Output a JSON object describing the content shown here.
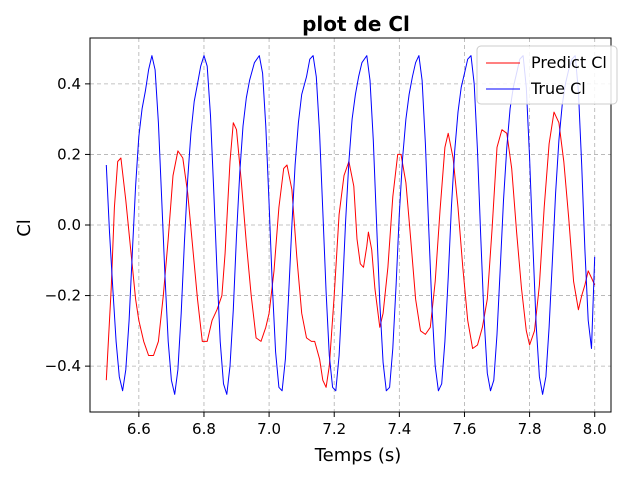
{
  "chart_data": {
    "type": "line",
    "title": "plot de Cl",
    "xlabel": "Temps (s)",
    "ylabel": "Cl",
    "xlim": [
      6.45,
      8.05
    ],
    "ylim": [
      -0.53,
      0.53
    ],
    "xticks": [
      6.6,
      6.8,
      7.0,
      7.2,
      7.4,
      7.6,
      7.8,
      8.0
    ],
    "xtick_labels": [
      "6.6",
      "6.8",
      "7.0",
      "7.2",
      "7.4",
      "7.6",
      "7.8",
      "8.0"
    ],
    "yticks": [
      -0.4,
      -0.2,
      0.0,
      0.2,
      0.4
    ],
    "ytick_labels": [
      "−0.4",
      "−0.2",
      "0.0",
      "0.2",
      "0.4"
    ],
    "grid": true,
    "legend_position": "top-right",
    "series": [
      {
        "name": "Predict Cl",
        "color": "#ff0000",
        "points": [
          [
            6.5,
            -0.44
          ],
          [
            6.515,
            -0.18
          ],
          [
            6.525,
            0.05
          ],
          [
            6.535,
            0.18
          ],
          [
            6.545,
            0.19
          ],
          [
            6.56,
            0.07
          ],
          [
            6.575,
            -0.07
          ],
          [
            6.59,
            -0.21
          ],
          [
            6.6,
            -0.27
          ],
          [
            6.615,
            -0.33
          ],
          [
            6.63,
            -0.37
          ],
          [
            6.645,
            -0.37
          ],
          [
            6.66,
            -0.33
          ],
          [
            6.675,
            -0.2
          ],
          [
            6.69,
            -0.04
          ],
          [
            6.705,
            0.14
          ],
          [
            6.72,
            0.21
          ],
          [
            6.735,
            0.19
          ],
          [
            6.75,
            0.09
          ],
          [
            6.765,
            -0.06
          ],
          [
            6.78,
            -0.21
          ],
          [
            6.795,
            -0.33
          ],
          [
            6.81,
            -0.33
          ],
          [
            6.825,
            -0.27
          ],
          [
            6.84,
            -0.24
          ],
          [
            6.855,
            -0.2
          ],
          [
            6.865,
            -0.08
          ],
          [
            6.88,
            0.18
          ],
          [
            6.89,
            0.29
          ],
          [
            6.9,
            0.27
          ],
          [
            6.915,
            0.12
          ],
          [
            6.93,
            -0.05
          ],
          [
            6.945,
            -0.2
          ],
          [
            6.96,
            -0.32
          ],
          [
            6.975,
            -0.33
          ],
          [
            6.99,
            -0.29
          ],
          [
            7.0,
            -0.25
          ],
          [
            7.015,
            -0.13
          ],
          [
            7.03,
            0.05
          ],
          [
            7.045,
            0.16
          ],
          [
            7.055,
            0.17
          ],
          [
            7.07,
            0.1
          ],
          [
            7.085,
            -0.09
          ],
          [
            7.1,
            -0.25
          ],
          [
            7.115,
            -0.32
          ],
          [
            7.13,
            -0.33
          ],
          [
            7.14,
            -0.33
          ],
          [
            7.155,
            -0.38
          ],
          [
            7.165,
            -0.44
          ],
          [
            7.175,
            -0.46
          ],
          [
            7.185,
            -0.4
          ],
          [
            7.2,
            -0.2
          ],
          [
            7.215,
            0.03
          ],
          [
            7.23,
            0.14
          ],
          [
            7.245,
            0.18
          ],
          [
            7.26,
            0.11
          ],
          [
            7.27,
            -0.04
          ],
          [
            7.28,
            -0.11
          ],
          [
            7.29,
            -0.12
          ],
          [
            7.3,
            -0.06
          ],
          [
            7.305,
            -0.02
          ],
          [
            7.315,
            -0.07
          ],
          [
            7.325,
            -0.18
          ],
          [
            7.34,
            -0.29
          ],
          [
            7.35,
            -0.25
          ],
          [
            7.365,
            -0.12
          ],
          [
            7.38,
            0.08
          ],
          [
            7.395,
            0.2
          ],
          [
            7.405,
            0.2
          ],
          [
            7.42,
            0.12
          ],
          [
            7.435,
            -0.04
          ],
          [
            7.45,
            -0.21
          ],
          [
            7.465,
            -0.3
          ],
          [
            7.48,
            -0.31
          ],
          [
            7.495,
            -0.29
          ],
          [
            7.51,
            -0.16
          ],
          [
            7.525,
            0.04
          ],
          [
            7.54,
            0.22
          ],
          [
            7.55,
            0.26
          ],
          [
            7.565,
            0.19
          ],
          [
            7.58,
            0.05
          ],
          [
            7.595,
            -0.12
          ],
          [
            7.61,
            -0.27
          ],
          [
            7.625,
            -0.35
          ],
          [
            7.64,
            -0.34
          ],
          [
            7.655,
            -0.29
          ],
          [
            7.67,
            -0.21
          ],
          [
            7.685,
            -0.01
          ],
          [
            7.7,
            0.22
          ],
          [
            7.715,
            0.27
          ],
          [
            7.73,
            0.26
          ],
          [
            7.745,
            0.16
          ],
          [
            7.76,
            -0.02
          ],
          [
            7.775,
            -0.18
          ],
          [
            7.79,
            -0.3
          ],
          [
            7.8,
            -0.34
          ],
          [
            7.815,
            -0.3
          ],
          [
            7.83,
            -0.17
          ],
          [
            7.845,
            0.05
          ],
          [
            7.86,
            0.23
          ],
          [
            7.875,
            0.32
          ],
          [
            7.89,
            0.29
          ],
          [
            7.905,
            0.18
          ],
          [
            7.92,
            0.02
          ],
          [
            7.935,
            -0.16
          ],
          [
            7.95,
            -0.24
          ],
          [
            7.96,
            -0.2
          ],
          [
            7.97,
            -0.17
          ],
          [
            7.98,
            -0.13
          ],
          [
            7.99,
            -0.15
          ],
          [
            8.0,
            -0.17
          ]
        ]
      },
      {
        "name": "True Cl",
        "color": "#0000ff",
        "points": [
          [
            6.5,
            0.17
          ],
          [
            6.51,
            -0.02
          ],
          [
            6.52,
            -0.18
          ],
          [
            6.53,
            -0.33
          ],
          [
            6.54,
            -0.43
          ],
          [
            6.55,
            -0.47
          ],
          [
            6.56,
            -0.41
          ],
          [
            6.57,
            -0.27
          ],
          [
            6.58,
            -0.08
          ],
          [
            6.59,
            0.11
          ],
          [
            6.6,
            0.25
          ],
          [
            6.61,
            0.33
          ],
          [
            6.62,
            0.38
          ],
          [
            6.63,
            0.44
          ],
          [
            6.64,
            0.48
          ],
          [
            6.65,
            0.44
          ],
          [
            6.66,
            0.29
          ],
          [
            6.67,
            0.08
          ],
          [
            6.68,
            -0.14
          ],
          [
            6.69,
            -0.33
          ],
          [
            6.7,
            -0.44
          ],
          [
            6.71,
            -0.48
          ],
          [
            6.72,
            -0.41
          ],
          [
            6.73,
            -0.25
          ],
          [
            6.74,
            -0.05
          ],
          [
            6.75,
            0.13
          ],
          [
            6.76,
            0.26
          ],
          [
            6.77,
            0.35
          ],
          [
            6.78,
            0.4
          ],
          [
            6.79,
            0.45
          ],
          [
            6.8,
            0.48
          ],
          [
            6.81,
            0.45
          ],
          [
            6.82,
            0.31
          ],
          [
            6.83,
            0.1
          ],
          [
            6.84,
            -0.13
          ],
          [
            6.85,
            -0.33
          ],
          [
            6.86,
            -0.45
          ],
          [
            6.87,
            -0.48
          ],
          [
            6.88,
            -0.4
          ],
          [
            6.89,
            -0.24
          ],
          [
            6.9,
            -0.03
          ],
          [
            6.91,
            0.15
          ],
          [
            6.92,
            0.28
          ],
          [
            6.93,
            0.36
          ],
          [
            6.94,
            0.41
          ],
          [
            6.955,
            0.46
          ],
          [
            6.97,
            0.48
          ],
          [
            6.98,
            0.43
          ],
          [
            6.99,
            0.28
          ],
          [
            7.0,
            0.06
          ],
          [
            7.01,
            -0.17
          ],
          [
            7.02,
            -0.36
          ],
          [
            7.03,
            -0.46
          ],
          [
            7.04,
            -0.47
          ],
          [
            7.05,
            -0.38
          ],
          [
            7.06,
            -0.2
          ],
          [
            7.07,
            0.0
          ],
          [
            7.08,
            0.17
          ],
          [
            7.09,
            0.29
          ],
          [
            7.1,
            0.37
          ],
          [
            7.115,
            0.42
          ],
          [
            7.125,
            0.47
          ],
          [
            7.135,
            0.48
          ],
          [
            7.145,
            0.42
          ],
          [
            7.155,
            0.26
          ],
          [
            7.165,
            0.04
          ],
          [
            7.175,
            -0.19
          ],
          [
            7.185,
            -0.37
          ],
          [
            7.195,
            -0.46
          ],
          [
            7.205,
            -0.47
          ],
          [
            7.215,
            -0.37
          ],
          [
            7.225,
            -0.19
          ],
          [
            7.235,
            0.01
          ],
          [
            7.245,
            0.18
          ],
          [
            7.255,
            0.3
          ],
          [
            7.265,
            0.37
          ],
          [
            7.275,
            0.42
          ],
          [
            7.285,
            0.46
          ],
          [
            7.3,
            0.48
          ],
          [
            7.31,
            0.41
          ],
          [
            7.32,
            0.24
          ],
          [
            7.33,
            0.01
          ],
          [
            7.34,
            -0.22
          ],
          [
            7.35,
            -0.39
          ],
          [
            7.36,
            -0.47
          ],
          [
            7.37,
            -0.46
          ],
          [
            7.38,
            -0.35
          ],
          [
            7.39,
            -0.17
          ],
          [
            7.4,
            0.03
          ],
          [
            7.41,
            0.19
          ],
          [
            7.42,
            0.3
          ],
          [
            7.43,
            0.37
          ],
          [
            7.44,
            0.42
          ],
          [
            7.45,
            0.46
          ],
          [
            7.46,
            0.48
          ],
          [
            7.47,
            0.41
          ],
          [
            7.48,
            0.23
          ],
          [
            7.49,
            0.0
          ],
          [
            7.5,
            -0.23
          ],
          [
            7.51,
            -0.4
          ],
          [
            7.52,
            -0.47
          ],
          [
            7.53,
            -0.45
          ],
          [
            7.54,
            -0.33
          ],
          [
            7.55,
            -0.15
          ],
          [
            7.56,
            0.05
          ],
          [
            7.57,
            0.21
          ],
          [
            7.58,
            0.32
          ],
          [
            7.59,
            0.39
          ],
          [
            7.6,
            0.43
          ],
          [
            7.61,
            0.47
          ],
          [
            7.62,
            0.48
          ],
          [
            7.63,
            0.4
          ],
          [
            7.64,
            0.21
          ],
          [
            7.65,
            -0.03
          ],
          [
            7.66,
            -0.26
          ],
          [
            7.67,
            -0.42
          ],
          [
            7.68,
            -0.47
          ],
          [
            7.69,
            -0.44
          ],
          [
            7.7,
            -0.31
          ],
          [
            7.71,
            -0.12
          ],
          [
            7.72,
            0.07
          ],
          [
            7.73,
            0.22
          ],
          [
            7.74,
            0.33
          ],
          [
            7.75,
            0.39
          ],
          [
            7.76,
            0.43
          ],
          [
            7.77,
            0.47
          ],
          [
            7.78,
            0.48
          ],
          [
            7.79,
            0.39
          ],
          [
            7.8,
            0.19
          ],
          [
            7.81,
            -0.05
          ],
          [
            7.82,
            -0.28
          ],
          [
            7.83,
            -0.43
          ],
          [
            7.84,
            -0.48
          ],
          [
            7.85,
            -0.43
          ],
          [
            7.86,
            -0.29
          ],
          [
            7.87,
            -0.1
          ],
          [
            7.88,
            0.09
          ],
          [
            7.89,
            0.24
          ],
          [
            7.9,
            0.34
          ],
          [
            7.91,
            0.4
          ],
          [
            7.92,
            0.44
          ],
          [
            7.93,
            0.47
          ],
          [
            7.94,
            0.48
          ],
          [
            7.95,
            0.38
          ],
          [
            7.96,
            0.17
          ],
          [
            7.97,
            -0.07
          ],
          [
            7.98,
            -0.27
          ],
          [
            7.99,
            -0.35
          ],
          [
            8.0,
            -0.09
          ]
        ]
      }
    ]
  }
}
